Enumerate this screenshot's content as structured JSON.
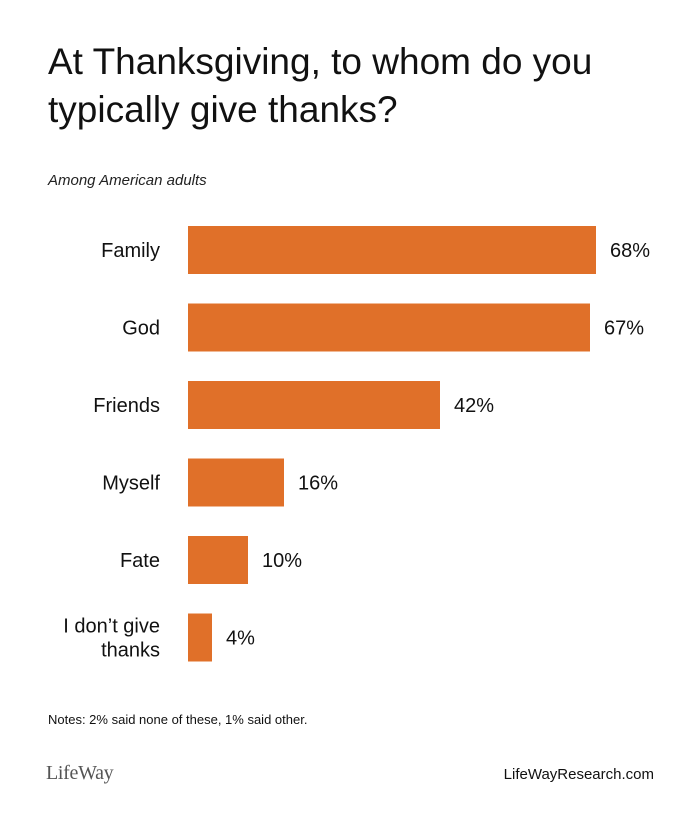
{
  "chart_data": {
    "type": "bar",
    "orientation": "horizontal",
    "title_lines": [
      "At Thanksgiving, to whom do you",
      "typically give thanks?"
    ],
    "subtitle": "Among American adults",
    "categories": [
      [
        "Family"
      ],
      [
        "God"
      ],
      [
        "Friends"
      ],
      [
        "Myself"
      ],
      [
        "Fate"
      ],
      [
        "I don’t give",
        "thanks"
      ]
    ],
    "values": [
      68,
      67,
      42,
      16,
      10,
      4
    ],
    "value_labels": [
      "68%",
      "67%",
      "42%",
      "16%",
      "10%",
      "4%"
    ],
    "xlim": [
      0,
      100
    ],
    "grid": false,
    "bar_color": "#E07029"
  },
  "notes": "Notes: 2% said none of these, 1% said other.",
  "brand": {
    "logo_text": "LifeWay",
    "website": "LifeWayResearch.com"
  }
}
